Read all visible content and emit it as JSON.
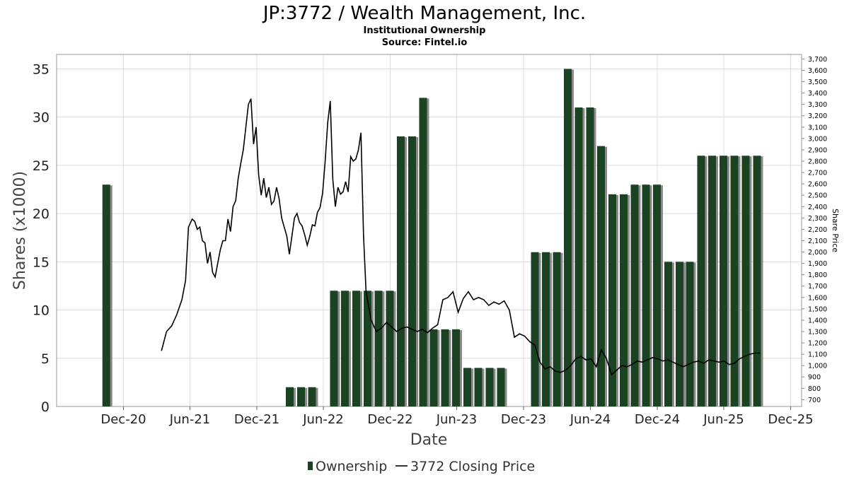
{
  "chart_data": {
    "type": "bar",
    "title": "JP:3772 / Wealth Management, Inc.",
    "subtitle": "Institutional Ownership",
    "source": "Source: Fintel.io",
    "xlabel": "Date",
    "ylabel": "Shares (x1000)",
    "y2label": "Share Price",
    "ylim": [
      0,
      36.5
    ],
    "y2lim": [
      640,
      3740
    ],
    "x_range": [
      "2020-06-01",
      "2025-12-31"
    ],
    "yticks": [
      "0",
      "5",
      "10",
      "15",
      "20",
      "25",
      "30",
      "35"
    ],
    "y2ticks": [
      "700",
      "800",
      "900",
      "1,000",
      "1,100",
      "1,200",
      "1,300",
      "1,400",
      "1,500",
      "1,600",
      "1,700",
      "1,800",
      "1,900",
      "2,000",
      "2,100",
      "2,200",
      "2,300",
      "2,400",
      "2,500",
      "2,600",
      "2,700",
      "2,800",
      "2,900",
      "3,000",
      "3,100",
      "3,200",
      "3,300",
      "3,400",
      "3,500",
      "3,600",
      "3,700"
    ],
    "xticks": [
      {
        "date": "2020-12-01",
        "label": "Dec-20"
      },
      {
        "date": "2021-06-01",
        "label": "Jun-21"
      },
      {
        "date": "2021-12-01",
        "label": "Dec-21"
      },
      {
        "date": "2022-06-01",
        "label": "Jun-22"
      },
      {
        "date": "2022-12-01",
        "label": "Dec-22"
      },
      {
        "date": "2023-06-01",
        "label": "Jun-23"
      },
      {
        "date": "2023-12-01",
        "label": "Dec-23"
      },
      {
        "date": "2024-06-01",
        "label": "Jun-24"
      },
      {
        "date": "2024-12-01",
        "label": "Dec-24"
      },
      {
        "date": "2025-06-01",
        "label": "Jun-25"
      },
      {
        "date": "2025-12-01",
        "label": "Dec-25"
      }
    ],
    "legend_position": "bottom-center",
    "grid": true,
    "series": [
      {
        "name": "Ownership",
        "type": "bar",
        "color": "#1b4223",
        "points": [
          {
            "date": "2020-10-15",
            "value": 23
          },
          {
            "date": "2022-03-01",
            "value": 2
          },
          {
            "date": "2022-04-01",
            "value": 2
          },
          {
            "date": "2022-05-01",
            "value": 2
          },
          {
            "date": "2022-06-30",
            "value": 12
          },
          {
            "date": "2022-07-30",
            "value": 12
          },
          {
            "date": "2022-08-30",
            "value": 12
          },
          {
            "date": "2022-09-30",
            "value": 12
          },
          {
            "date": "2022-10-30",
            "value": 12
          },
          {
            "date": "2022-11-30",
            "value": 12
          },
          {
            "date": "2022-12-30",
            "value": 28
          },
          {
            "date": "2023-01-30",
            "value": 28
          },
          {
            "date": "2023-03-01",
            "value": 32
          },
          {
            "date": "2023-03-30",
            "value": 8
          },
          {
            "date": "2023-04-30",
            "value": 8
          },
          {
            "date": "2023-05-30",
            "value": 8
          },
          {
            "date": "2023-06-30",
            "value": 4
          },
          {
            "date": "2023-07-30",
            "value": 4
          },
          {
            "date": "2023-08-30",
            "value": 4
          },
          {
            "date": "2023-09-30",
            "value": 4
          },
          {
            "date": "2024-01-01",
            "value": 16
          },
          {
            "date": "2024-01-31",
            "value": 16
          },
          {
            "date": "2024-03-01",
            "value": 16
          },
          {
            "date": "2024-03-31",
            "value": 35
          },
          {
            "date": "2024-04-30",
            "value": 31
          },
          {
            "date": "2024-05-31",
            "value": 31
          },
          {
            "date": "2024-06-30",
            "value": 27
          },
          {
            "date": "2024-07-31",
            "value": 22
          },
          {
            "date": "2024-08-31",
            "value": 22
          },
          {
            "date": "2024-09-30",
            "value": 23
          },
          {
            "date": "2024-10-31",
            "value": 23
          },
          {
            "date": "2024-11-30",
            "value": 23
          },
          {
            "date": "2024-12-31",
            "value": 15
          },
          {
            "date": "2025-01-31",
            "value": 15
          },
          {
            "date": "2025-02-28",
            "value": 15
          },
          {
            "date": "2025-03-31",
            "value": 26
          },
          {
            "date": "2025-04-30",
            "value": 26
          },
          {
            "date": "2025-05-31",
            "value": 26
          },
          {
            "date": "2025-06-30",
            "value": 26
          },
          {
            "date": "2025-07-31",
            "value": 26
          },
          {
            "date": "2025-08-31",
            "value": 26
          }
        ]
      },
      {
        "name": "3772 Closing Price",
        "type": "line",
        "axis": "right",
        "color": "#000000",
        "points": [
          [
            "2021-03-15",
            1130
          ],
          [
            "2021-03-29",
            1300
          ],
          [
            "2021-04-12",
            1350
          ],
          [
            "2021-04-26",
            1450
          ],
          [
            "2021-05-10",
            1580
          ],
          [
            "2021-05-20",
            1750
          ],
          [
            "2021-05-28",
            2220
          ],
          [
            "2021-06-07",
            2290
          ],
          [
            "2021-06-14",
            2270
          ],
          [
            "2021-06-21",
            2200
          ],
          [
            "2021-06-28",
            2220
          ],
          [
            "2021-07-05",
            2100
          ],
          [
            "2021-07-12",
            2080
          ],
          [
            "2021-07-19",
            1900
          ],
          [
            "2021-07-26",
            2000
          ],
          [
            "2021-08-02",
            1820
          ],
          [
            "2021-08-09",
            1780
          ],
          [
            "2021-08-16",
            1900
          ],
          [
            "2021-08-23",
            2020
          ],
          [
            "2021-08-30",
            2100
          ],
          [
            "2021-09-06",
            2100
          ],
          [
            "2021-09-13",
            2290
          ],
          [
            "2021-09-20",
            2180
          ],
          [
            "2021-09-27",
            2400
          ],
          [
            "2021-10-04",
            2450
          ],
          [
            "2021-10-11",
            2650
          ],
          [
            "2021-10-18",
            2780
          ],
          [
            "2021-10-25",
            2900
          ],
          [
            "2021-11-01",
            3100
          ],
          [
            "2021-11-08",
            3300
          ],
          [
            "2021-11-15",
            3350
          ],
          [
            "2021-11-22",
            2950
          ],
          [
            "2021-11-29",
            3100
          ],
          [
            "2021-12-06",
            2680
          ],
          [
            "2021-12-13",
            2500
          ],
          [
            "2021-12-20",
            2650
          ],
          [
            "2021-12-27",
            2480
          ],
          [
            "2022-01-03",
            2570
          ],
          [
            "2022-01-10",
            2420
          ],
          [
            "2022-01-17",
            2450
          ],
          [
            "2022-01-24",
            2570
          ],
          [
            "2022-01-31",
            2470
          ],
          [
            "2022-02-07",
            2300
          ],
          [
            "2022-02-14",
            2220
          ],
          [
            "2022-02-21",
            2140
          ],
          [
            "2022-02-28",
            1980
          ],
          [
            "2022-03-07",
            2140
          ],
          [
            "2022-03-14",
            2300
          ],
          [
            "2022-03-21",
            2340
          ],
          [
            "2022-03-28",
            2260
          ],
          [
            "2022-04-04",
            2230
          ],
          [
            "2022-04-11",
            2150
          ],
          [
            "2022-04-18",
            2060
          ],
          [
            "2022-04-25",
            2140
          ],
          [
            "2022-05-02",
            2240
          ],
          [
            "2022-05-09",
            2230
          ],
          [
            "2022-05-16",
            2350
          ],
          [
            "2022-05-23",
            2390
          ],
          [
            "2022-05-30",
            2520
          ],
          [
            "2022-06-06",
            2800
          ],
          [
            "2022-06-13",
            3140
          ],
          [
            "2022-06-20",
            3330
          ],
          [
            "2022-06-27",
            2640
          ],
          [
            "2022-07-04",
            2400
          ],
          [
            "2022-07-11",
            2570
          ],
          [
            "2022-07-18",
            2510
          ],
          [
            "2022-07-25",
            2530
          ],
          [
            "2022-08-01",
            2620
          ],
          [
            "2022-08-08",
            2530
          ],
          [
            "2022-08-15",
            2840
          ],
          [
            "2022-08-22",
            2800
          ],
          [
            "2022-08-29",
            2820
          ],
          [
            "2022-09-05",
            2900
          ],
          [
            "2022-09-12",
            3050
          ],
          [
            "2022-09-19",
            2150
          ],
          [
            "2022-09-26",
            1650
          ],
          [
            "2022-10-10",
            1400
          ],
          [
            "2022-10-24",
            1300
          ],
          [
            "2022-11-07",
            1330
          ],
          [
            "2022-11-21",
            1380
          ],
          [
            "2022-12-05",
            1340
          ],
          [
            "2022-12-19",
            1300
          ],
          [
            "2023-01-02",
            1330
          ],
          [
            "2023-01-16",
            1340
          ],
          [
            "2023-01-30",
            1320
          ],
          [
            "2023-02-13",
            1300
          ],
          [
            "2023-02-27",
            1320
          ],
          [
            "2023-03-13",
            1290
          ],
          [
            "2023-03-27",
            1330
          ],
          [
            "2023-04-10",
            1360
          ],
          [
            "2023-04-24",
            1580
          ],
          [
            "2023-05-08",
            1600
          ],
          [
            "2023-05-22",
            1650
          ],
          [
            "2023-06-05",
            1470
          ],
          [
            "2023-06-19",
            1590
          ],
          [
            "2023-07-03",
            1650
          ],
          [
            "2023-07-17",
            1580
          ],
          [
            "2023-07-31",
            1600
          ],
          [
            "2023-08-14",
            1580
          ],
          [
            "2023-08-28",
            1530
          ],
          [
            "2023-09-11",
            1560
          ],
          [
            "2023-09-25",
            1540
          ],
          [
            "2023-10-09",
            1570
          ],
          [
            "2023-10-23",
            1490
          ],
          [
            "2023-11-06",
            1250
          ],
          [
            "2023-11-20",
            1280
          ],
          [
            "2023-12-04",
            1260
          ],
          [
            "2023-12-18",
            1210
          ],
          [
            "2024-01-01",
            1180
          ],
          [
            "2024-01-15",
            1030
          ],
          [
            "2024-01-29",
            970
          ],
          [
            "2024-02-12",
            990
          ],
          [
            "2024-02-26",
            950
          ],
          [
            "2024-03-11",
            940
          ],
          [
            "2024-03-25",
            960
          ],
          [
            "2024-04-08",
            1000
          ],
          [
            "2024-04-22",
            1060
          ],
          [
            "2024-05-06",
            1080
          ],
          [
            "2024-05-20",
            1050
          ],
          [
            "2024-06-03",
            1060
          ],
          [
            "2024-06-17",
            990
          ],
          [
            "2024-07-01",
            1140
          ],
          [
            "2024-07-15",
            1060
          ],
          [
            "2024-07-29",
            920
          ],
          [
            "2024-08-12",
            960
          ],
          [
            "2024-08-26",
            1000
          ],
          [
            "2024-09-09",
            990
          ],
          [
            "2024-09-23",
            1010
          ],
          [
            "2024-10-07",
            1040
          ],
          [
            "2024-10-21",
            1030
          ],
          [
            "2024-11-04",
            1050
          ],
          [
            "2024-11-18",
            1070
          ],
          [
            "2024-12-02",
            1060
          ],
          [
            "2024-12-16",
            1040
          ],
          [
            "2024-12-30",
            1050
          ],
          [
            "2025-01-13",
            1030
          ],
          [
            "2025-01-27",
            1010
          ],
          [
            "2025-02-10",
            990
          ],
          [
            "2025-02-24",
            1010
          ],
          [
            "2025-03-10",
            1030
          ],
          [
            "2025-03-24",
            1040
          ],
          [
            "2025-04-07",
            1020
          ],
          [
            "2025-04-21",
            1050
          ],
          [
            "2025-05-05",
            1040
          ],
          [
            "2025-05-19",
            1030
          ],
          [
            "2025-06-02",
            1040
          ],
          [
            "2025-06-16",
            1010
          ],
          [
            "2025-06-30",
            1020
          ],
          [
            "2025-07-14",
            1060
          ],
          [
            "2025-07-28",
            1080
          ],
          [
            "2025-08-11",
            1100
          ],
          [
            "2025-08-25",
            1110
          ],
          [
            "2025-09-08",
            1110
          ]
        ]
      }
    ]
  }
}
